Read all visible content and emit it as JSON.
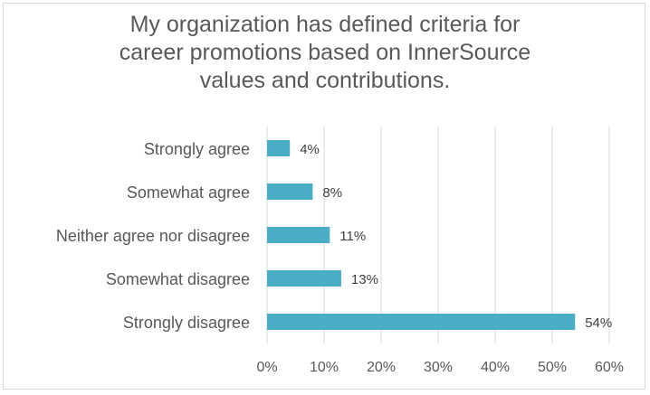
{
  "chart_data": {
    "type": "bar",
    "orientation": "horizontal",
    "title_lines": [
      "My organization has defined criteria for",
      "career promotions based on InnerSource",
      "values and contributions."
    ],
    "categories": [
      "Strongly agree",
      "Somewhat agree",
      "Neither agree nor disagree",
      "Somewhat disagree",
      "Strongly disagree"
    ],
    "values": [
      4,
      8,
      11,
      13,
      54
    ],
    "data_labels": [
      "4%",
      "8%",
      "11%",
      "13%",
      "54%"
    ],
    "x_ticks": [
      "0%",
      "10%",
      "20%",
      "30%",
      "40%",
      "50%",
      "60%"
    ],
    "xlim": [
      0,
      60
    ],
    "xlabel": "",
    "ylabel": "",
    "grid": "vertical",
    "legend": "none",
    "bar_color": "#4bacc6",
    "grid_color": "#d9d9d9"
  }
}
